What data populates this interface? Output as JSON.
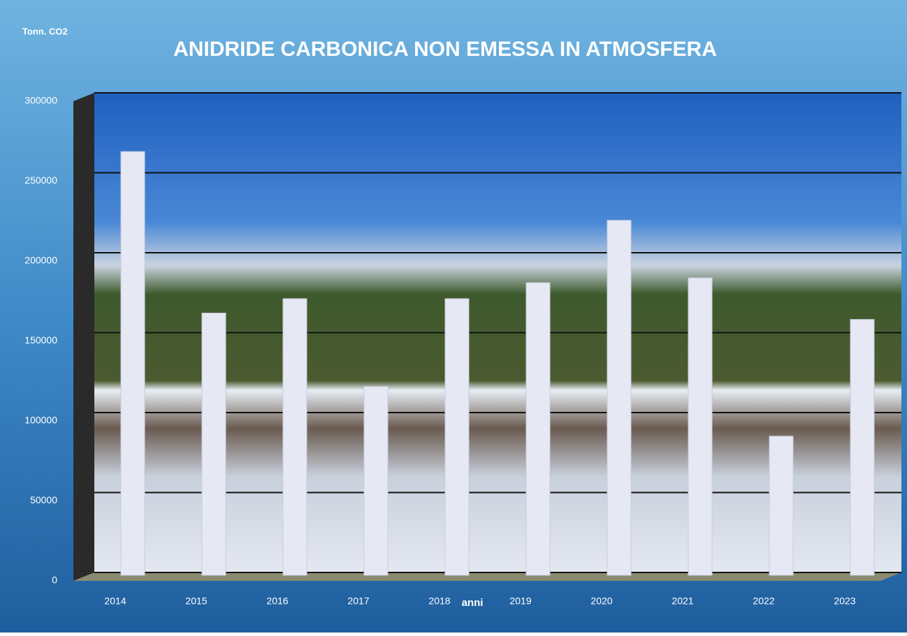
{
  "chart_data": {
    "type": "bar",
    "title": "ANIDRIDE CARBONICA NON EMESSA IN ATMOSFERA",
    "y_label": "Tonn. CO2",
    "x_label": "anni",
    "categories": [
      "2014",
      "2015",
      "2016",
      "2017",
      "2018",
      "2019",
      "2020",
      "2021",
      "2022",
      "2023"
    ],
    "values": [
      265000,
      164000,
      173000,
      118000,
      173000,
      183000,
      222000,
      186000,
      87000,
      160000
    ],
    "color": "#e6e8f4",
    "ylim": [
      0,
      300000
    ],
    "yticks": [
      0,
      50000,
      100000,
      150000,
      200000,
      250000,
      300000
    ],
    "grid": true
  }
}
